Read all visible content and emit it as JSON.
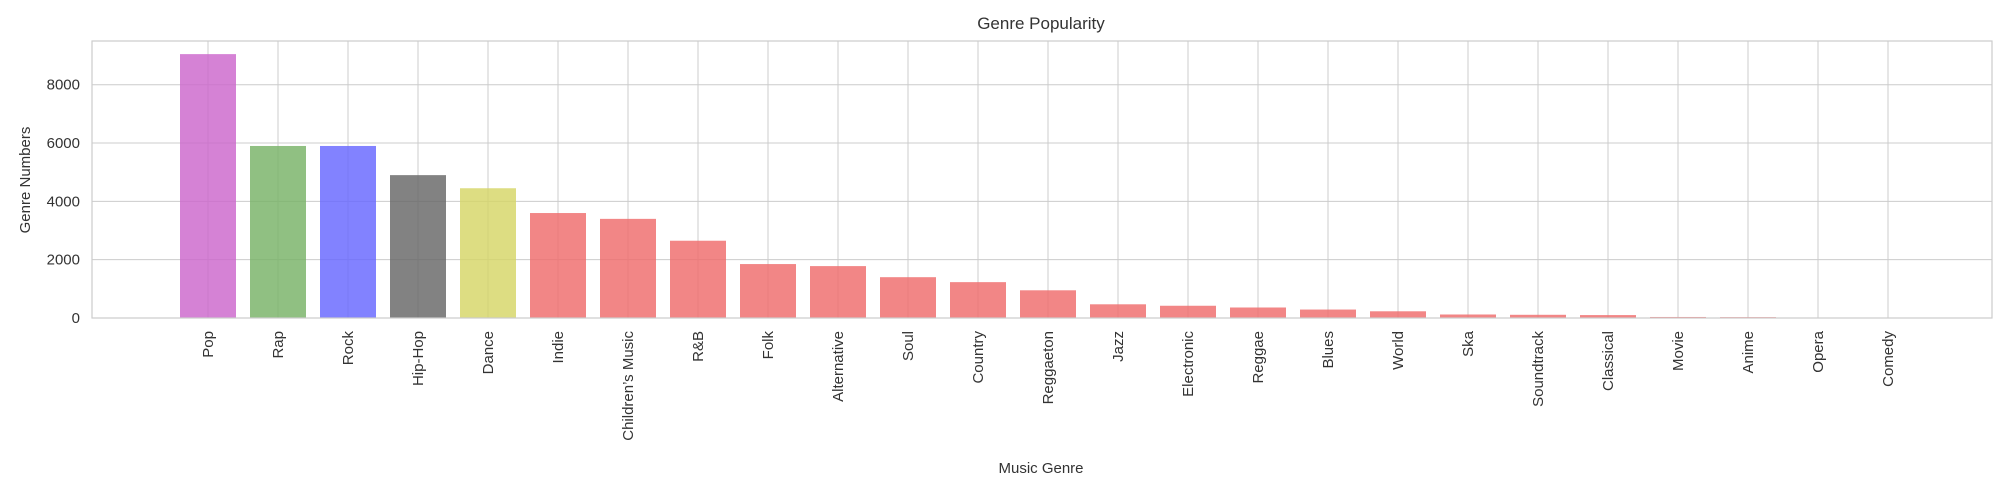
{
  "chart_data": {
    "type": "bar",
    "title": "Genre Popularity",
    "xlabel": "Music Genre",
    "ylabel": "Genre Numbers",
    "ylim": [
      0,
      9500
    ],
    "yticks": [
      0,
      2000,
      4000,
      6000,
      8000
    ],
    "grid": true,
    "categories": [
      "Pop",
      "Rap",
      "Rock",
      "Hip-Hop",
      "Dance",
      "Indie",
      "Children’s Music",
      "R&B",
      "Folk",
      "Alternative",
      "Soul",
      "Country",
      "Reggaeton",
      "Jazz",
      "Electronic",
      "Reggae",
      "Blues",
      "World",
      "Ska",
      "Soundtrack",
      "Classical",
      "Movie",
      "Anime",
      "Opera",
      "Comedy"
    ],
    "values": [
      9050,
      5900,
      5900,
      4900,
      4450,
      3600,
      3400,
      2650,
      1850,
      1780,
      1400,
      1230,
      950,
      470,
      420,
      360,
      290,
      230,
      120,
      110,
      100,
      35,
      30,
      15,
      10
    ],
    "colors": [
      "#cc66cc",
      "#77b266",
      "#6666ff",
      "#666666",
      "#d6d666",
      "#ef6b6b",
      "#ef6b6b",
      "#ef6b6b",
      "#ef6b6b",
      "#ef6b6b",
      "#ef6b6b",
      "#ef6b6b",
      "#ef6b6b",
      "#ef6b6b",
      "#ef6b6b",
      "#ef6b6b",
      "#ef6b6b",
      "#ef6b6b",
      "#ef6b6b",
      "#ef6b6b",
      "#ef6b6b",
      "#ef6b6b",
      "#ef6b6b",
      "#ef6b6b",
      "#ef6b6b"
    ],
    "grid_color": "#cccccc"
  }
}
